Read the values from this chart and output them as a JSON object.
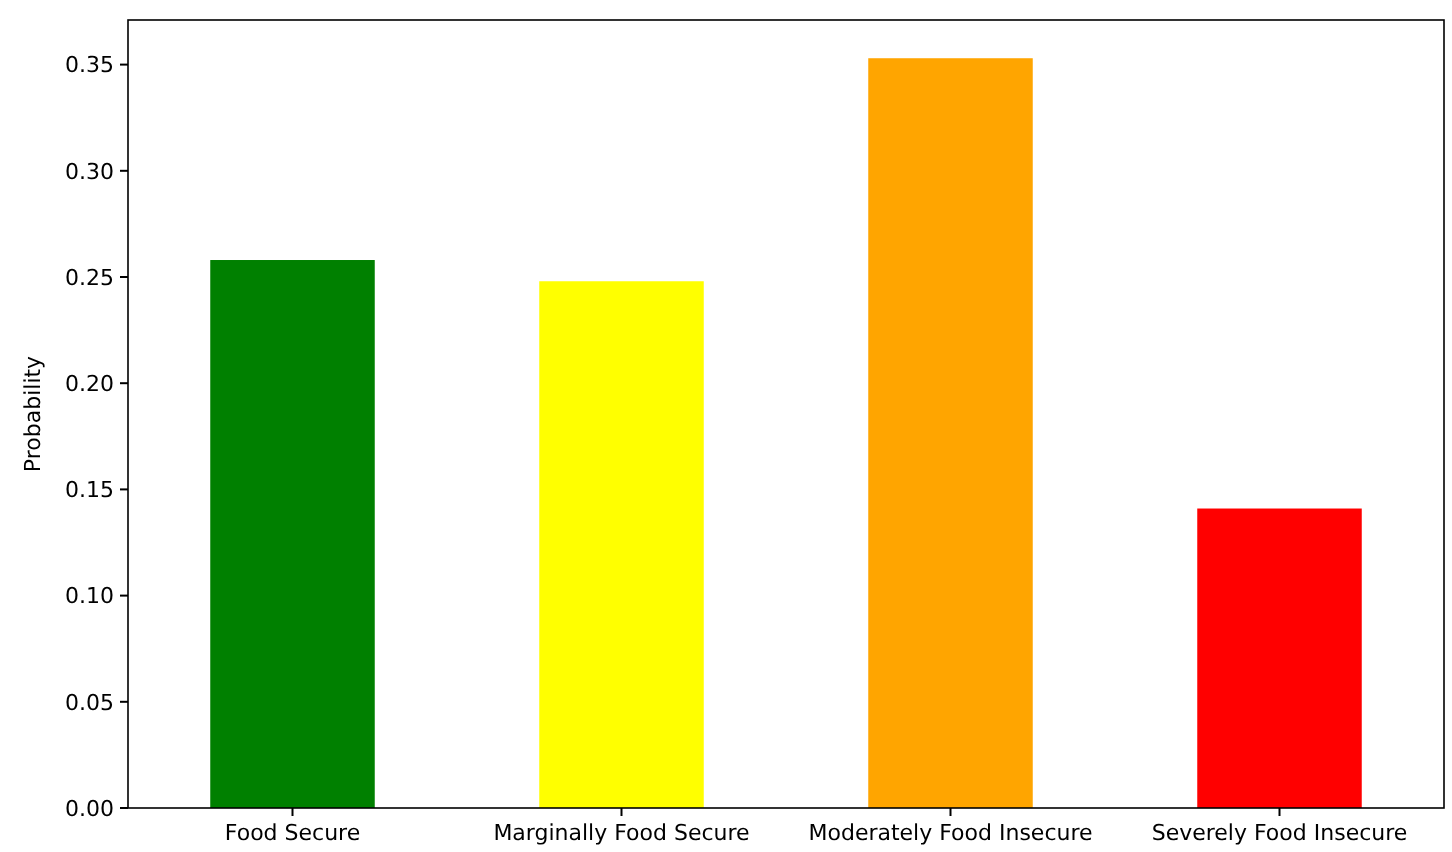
{
  "chart_data": {
    "type": "bar",
    "ylabel": "Probability",
    "categories": [
      "Food Secure",
      "Marginally Food Secure",
      "Moderately Food Insecure",
      "Severely Food Insecure"
    ],
    "values": [
      0.258,
      0.248,
      0.353,
      0.141
    ],
    "colors": [
      "#008000",
      "#ffff00",
      "#ffa500",
      "#ff0000"
    ],
    "ylim": [
      0,
      0.371
    ],
    "yticks": [
      {
        "value": 0,
        "label": "0.00"
      },
      {
        "value": 0.05,
        "label": "0.05"
      },
      {
        "value": 0.1,
        "label": "0.10"
      },
      {
        "value": 0.15,
        "label": "0.15"
      },
      {
        "value": 0.2,
        "label": "0.20"
      },
      {
        "value": 0.25,
        "label": "0.25"
      },
      {
        "value": 0.3,
        "label": "0.30"
      },
      {
        "value": 0.35,
        "label": "0.35"
      }
    ]
  }
}
